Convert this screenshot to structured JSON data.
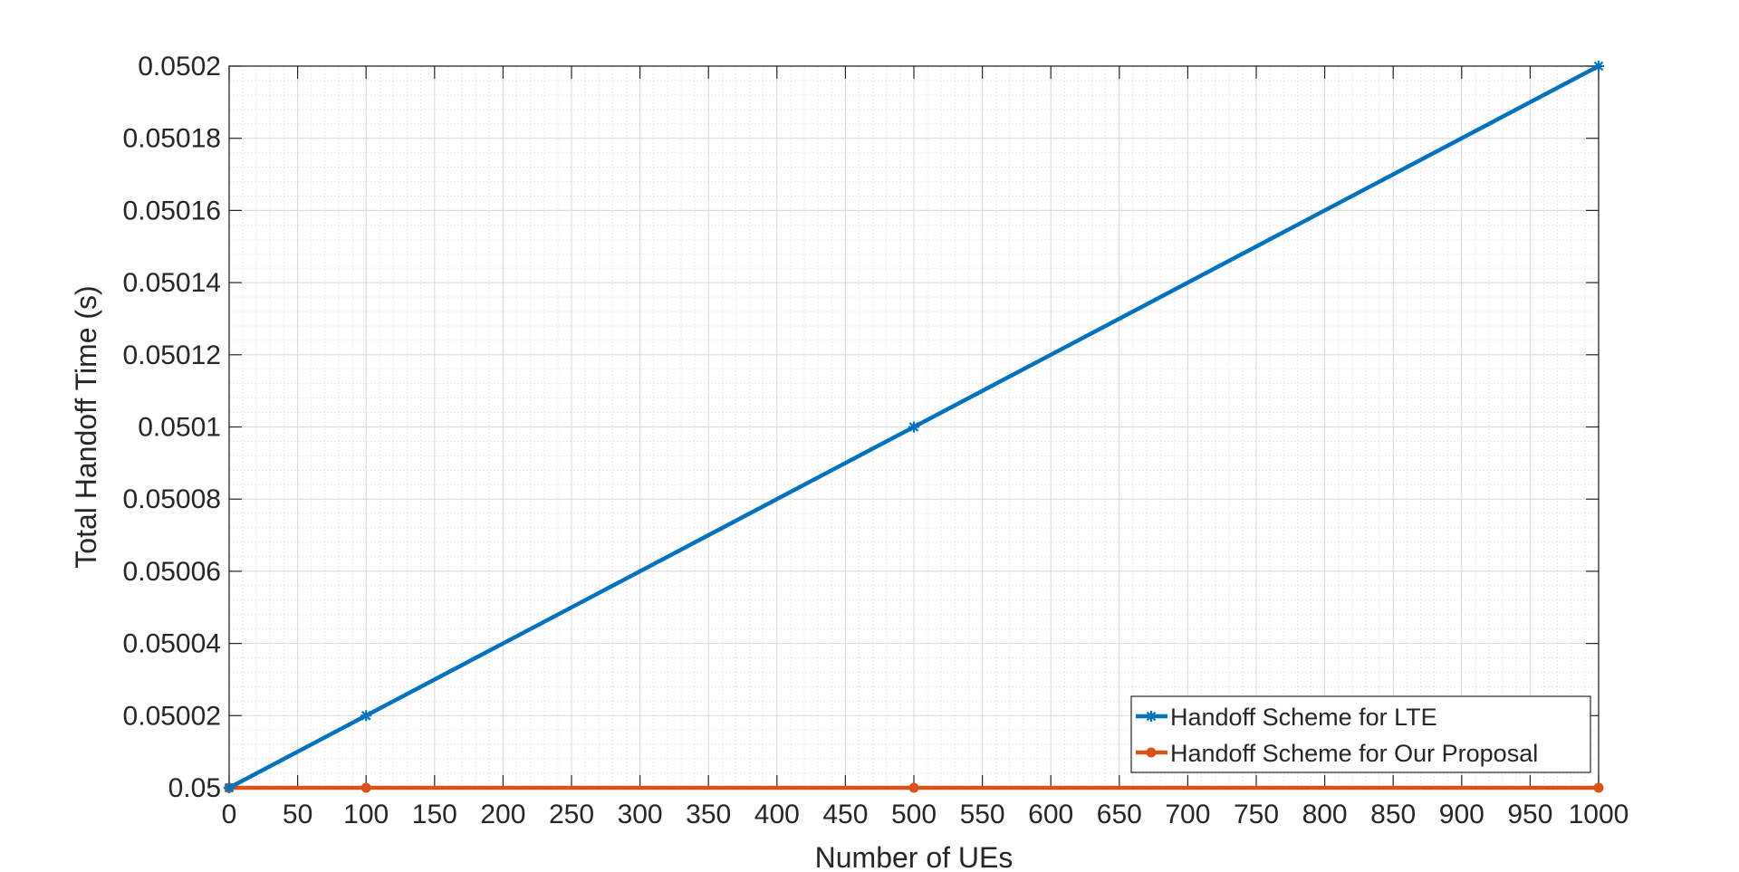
{
  "chart_data": {
    "type": "line",
    "title": "",
    "xlabel": "Number of UEs",
    "ylabel": "Total Handoff Time (s)",
    "xlim": [
      0,
      1000
    ],
    "ylim": [
      0.05,
      0.0502
    ],
    "x_ticks": [
      "0",
      "50",
      "100",
      "150",
      "200",
      "250",
      "300",
      "350",
      "400",
      "450",
      "500",
      "550",
      "600",
      "650",
      "700",
      "750",
      "800",
      "850",
      "900",
      "950",
      "1000"
    ],
    "y_ticks": [
      "0.05",
      "0.05002",
      "0.05004",
      "0.05006",
      "0.05008",
      "0.0501",
      "0.05012",
      "0.05014",
      "0.05016",
      "0.05018",
      "0.0502"
    ],
    "grid": true,
    "minor_grid": true,
    "legend_position": "bottom-right",
    "series": [
      {
        "name": "Handoff Scheme for LTE",
        "color": "#0072BD",
        "marker": "asterisk",
        "x": [
          0,
          100,
          500,
          1000
        ],
        "y": [
          0.05,
          0.05002,
          0.0501,
          0.0502
        ]
      },
      {
        "name": "Handoff Scheme for Our Proposal",
        "color": "#D95319",
        "marker": "dot",
        "x": [
          0,
          100,
          500,
          1000
        ],
        "y": [
          0.05,
          0.05,
          0.05,
          0.05
        ]
      }
    ]
  }
}
